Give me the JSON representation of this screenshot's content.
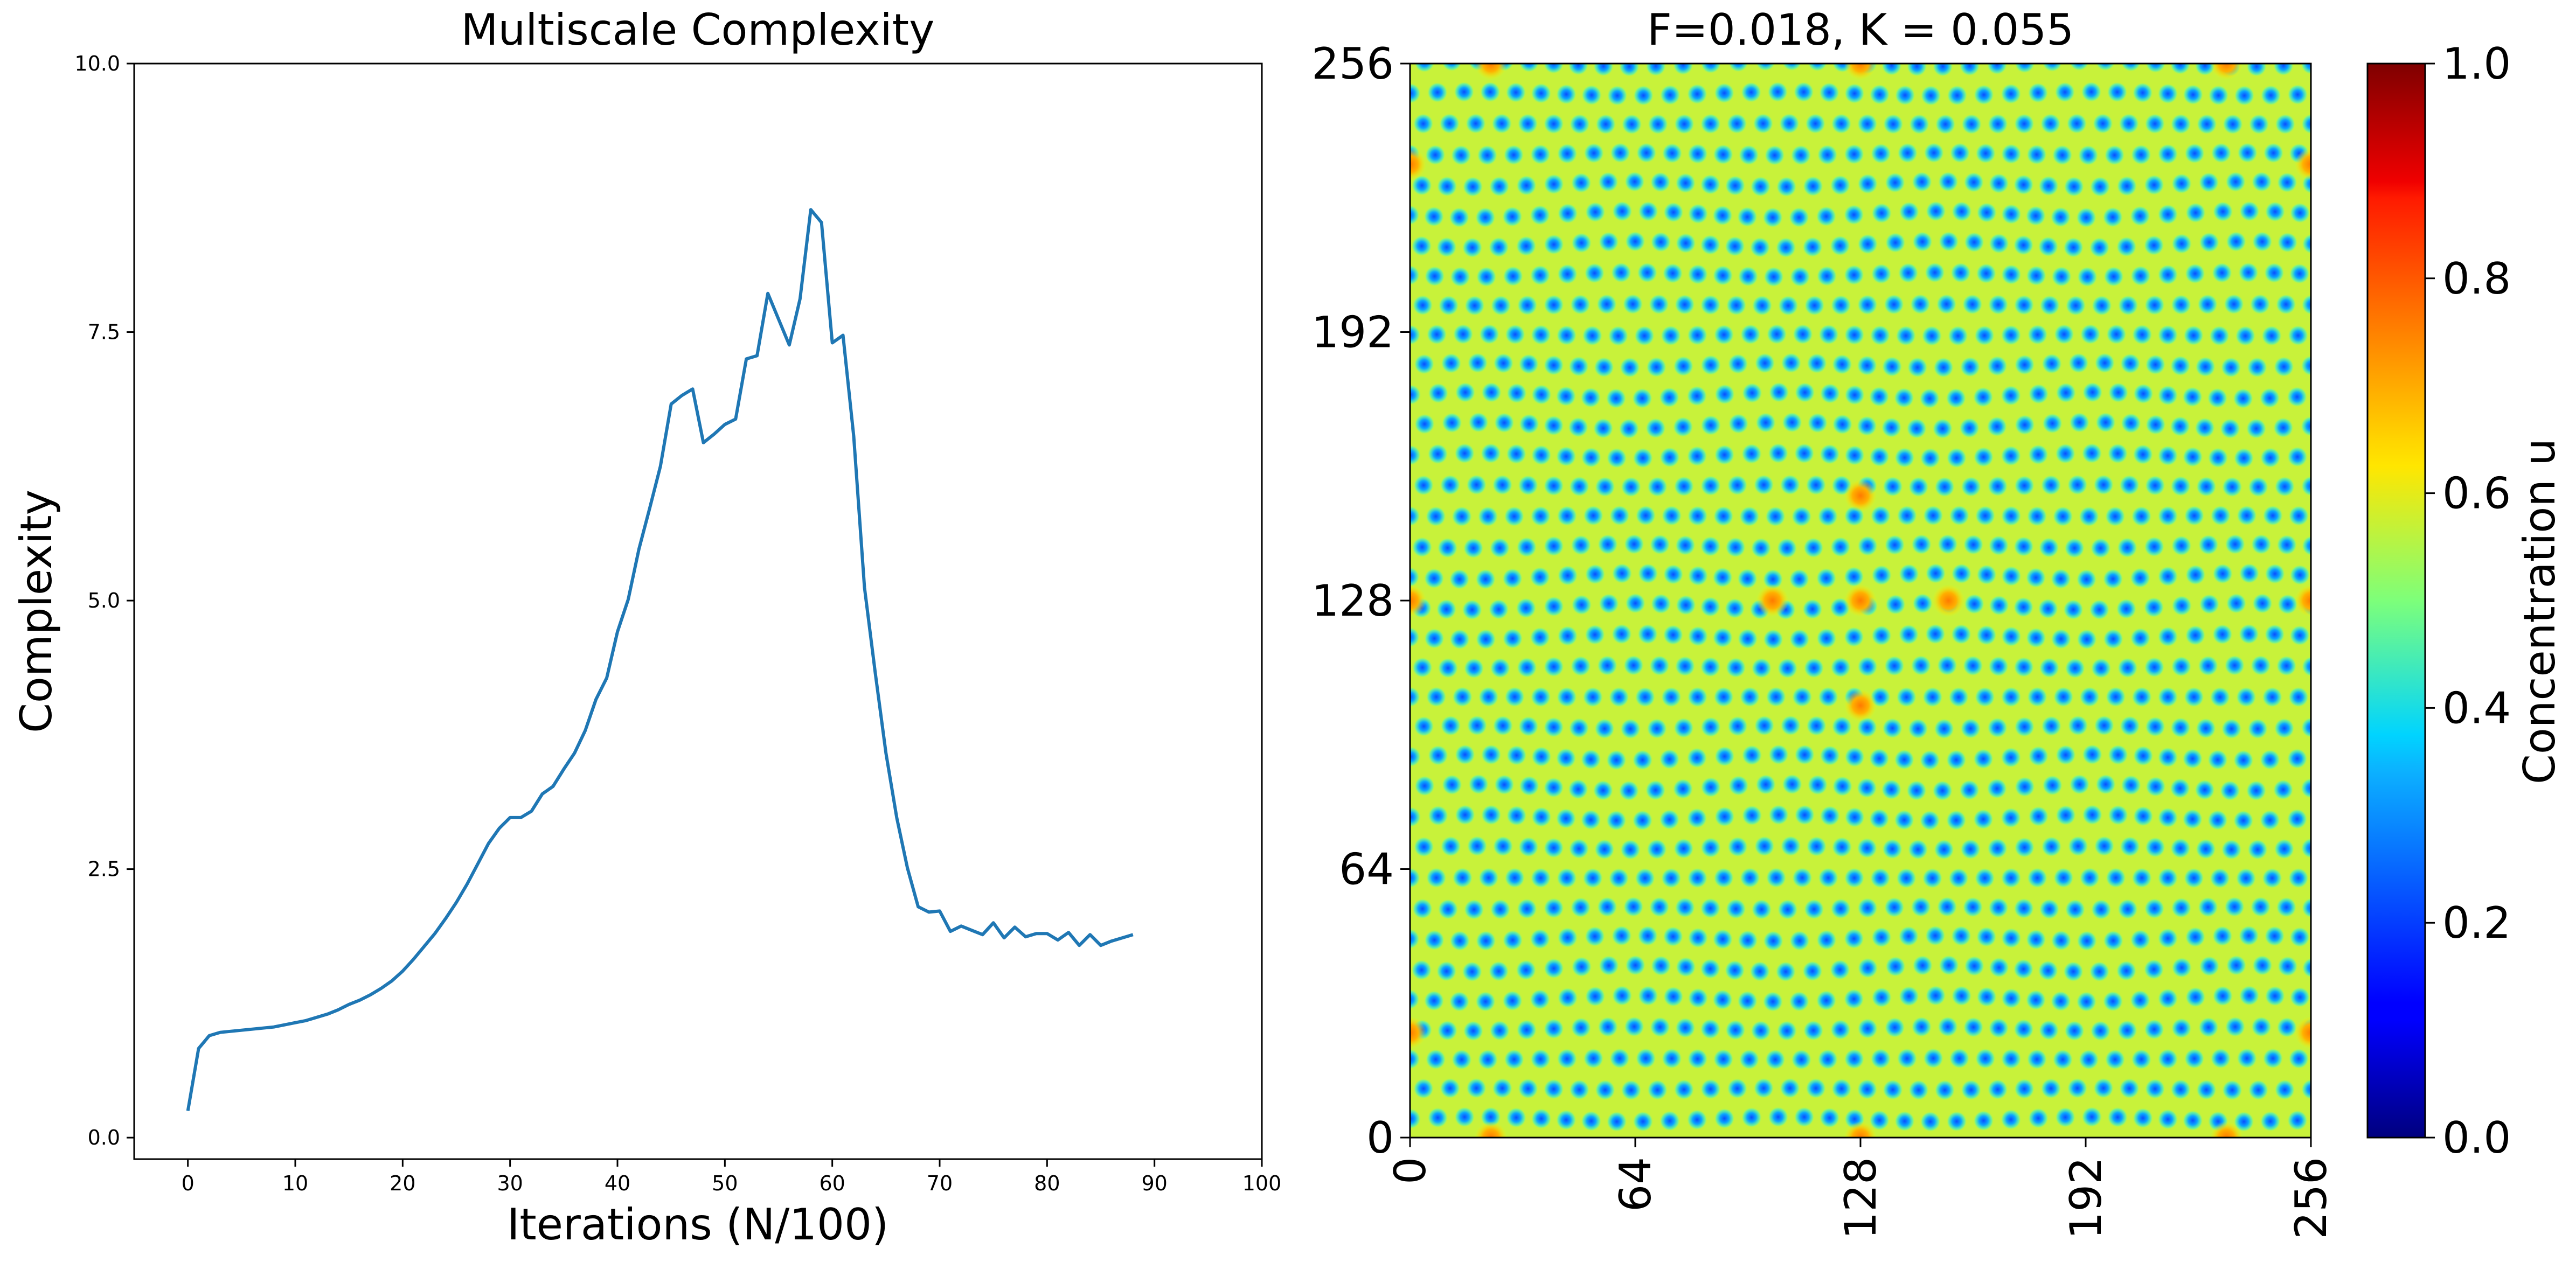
{
  "chart_data": [
    {
      "type": "line",
      "title": "Multiscale Complexity",
      "xlabel": "Iterations (N/100)",
      "ylabel": "Complexity",
      "xlim": [
        -5,
        100
      ],
      "ylim": [
        -0.2,
        10.0
      ],
      "xticks": [
        0,
        10,
        20,
        30,
        40,
        50,
        60,
        70,
        80,
        90,
        100
      ],
      "xtick_labels": [
        "0",
        "10",
        "20",
        "30",
        "40",
        "50",
        "60",
        "70",
        "80",
        "90",
        "100"
      ],
      "yticks": [
        0,
        2.5,
        5.0,
        7.5,
        10.0
      ],
      "ytick_labels": [
        "0.0",
        "2.5",
        "5.0",
        "7.5",
        "10.0"
      ],
      "grid": false,
      "series": [
        {
          "color": "#1f77b4",
          "x": [
            0,
            1,
            2,
            3,
            4,
            5,
            6,
            7,
            8,
            9,
            10,
            11,
            12,
            13,
            14,
            15,
            16,
            17,
            18,
            19,
            20,
            21,
            22,
            23,
            24,
            25,
            26,
            27,
            28,
            29,
            30,
            31,
            32,
            33,
            34,
            35,
            36,
            37,
            38,
            39,
            40,
            41,
            42,
            43,
            44,
            45,
            46,
            47,
            48,
            49,
            50,
            51,
            52,
            53,
            54,
            55,
            56,
            57,
            58,
            59,
            60,
            61,
            62,
            63,
            64,
            65,
            66,
            67,
            68,
            69,
            70,
            71,
            72,
            73,
            74,
            75,
            76,
            77,
            78,
            79,
            80,
            81,
            82,
            83,
            84,
            85,
            86,
            87,
            88
          ],
          "y": [
            0.25,
            0.83,
            0.95,
            0.98,
            0.99,
            1.0,
            1.01,
            1.02,
            1.03,
            1.05,
            1.07,
            1.09,
            1.12,
            1.15,
            1.19,
            1.24,
            1.28,
            1.33,
            1.39,
            1.46,
            1.55,
            1.66,
            1.78,
            1.9,
            2.04,
            2.19,
            2.36,
            2.55,
            2.74,
            2.88,
            2.98,
            2.98,
            3.04,
            3.2,
            3.27,
            3.43,
            3.58,
            3.79,
            4.08,
            4.28,
            4.71,
            5.01,
            5.48,
            5.86,
            6.25,
            6.83,
            6.91,
            6.97,
            6.47,
            6.55,
            6.64,
            6.69,
            7.25,
            7.28,
            7.86,
            7.62,
            7.38,
            7.81,
            8.64,
            8.52,
            7.4,
            7.47,
            6.53,
            5.12,
            4.33,
            3.58,
            2.98,
            2.51,
            2.15,
            2.1,
            2.11,
            1.92,
            1.97,
            1.93,
            1.89,
            2.0,
            1.86,
            1.96,
            1.87,
            1.9,
            1.9,
            1.84,
            1.91,
            1.79,
            1.89,
            1.79,
            1.83,
            1.86,
            1.89
          ]
        }
      ]
    },
    {
      "type": "heatmap",
      "title": "F=0.018, K = 0.055",
      "xlim": [
        0,
        256
      ],
      "ylim": [
        0,
        256
      ],
      "xticks": [
        0,
        64,
        128,
        192,
        256
      ],
      "xtick_labels": [
        "0",
        "64",
        "128",
        "192",
        "256"
      ],
      "yticks": [
        0,
        64,
        128,
        192,
        256
      ],
      "ytick_labels": [
        "0",
        "64",
        "128",
        "192",
        "256"
      ],
      "colormap": "jet",
      "colorbar": {
        "label": "Concentration u",
        "range": [
          0.0,
          1.0
        ],
        "ticks": [
          0.0,
          0.2,
          0.4,
          0.6,
          0.8,
          1.0
        ],
        "tick_labels": [
          "0.0",
          "0.2",
          "0.4",
          "0.6",
          "0.8",
          "1.0"
        ]
      },
      "field": "Gray-Scott reaction-diffusion spot pattern; background ~0.55-0.6 (yellow-green), spots ~0.2-0.3 (blue), bright spots ~0.75 (orange) near center and edges"
    }
  ]
}
